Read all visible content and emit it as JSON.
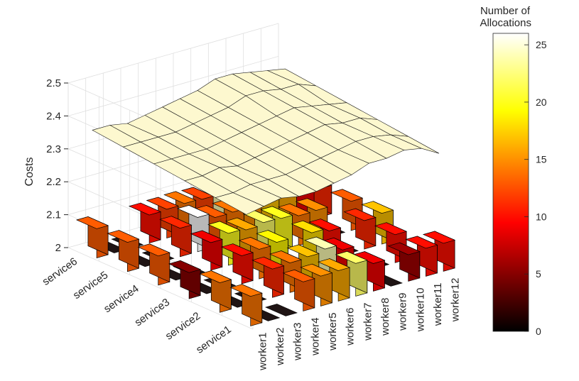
{
  "chart_data": {
    "type": "bar3d+surface",
    "zlabel": "Costs",
    "zlim": [
      2.0,
      2.5
    ],
    "zticks": [
      "2",
      "2.1",
      "2.2",
      "2.3",
      "2.4",
      "2.5"
    ],
    "services": [
      "service1",
      "service2",
      "service3",
      "service4",
      "service5",
      "service6"
    ],
    "workers": [
      "worker1",
      "worker2",
      "worker3",
      "worker4",
      "worker5",
      "worker6",
      "worker7",
      "worker8",
      "worker9",
      "worker10",
      "worker11",
      "worker12"
    ],
    "colorbar": {
      "title_line1": "Number of",
      "title_line2": "Allocations",
      "range": [
        0,
        26
      ],
      "ticks": [
        "0",
        "5",
        "10",
        "15",
        "20",
        "25"
      ]
    },
    "allocations": [
      [
        14,
        0,
        0,
        13,
        15,
        16,
        22,
        9,
        0,
        6,
        10,
        10
      ],
      [
        14,
        0,
        0,
        11,
        14,
        17,
        24,
        9,
        0,
        0,
        10,
        0
      ],
      [
        5,
        0,
        0,
        10,
        14,
        19,
        0,
        18,
        10,
        0,
        11,
        17
      ],
      [
        13,
        0,
        0,
        9,
        20,
        16,
        22,
        20,
        14,
        15,
        0,
        13
      ],
      [
        13,
        0,
        0,
        11,
        26,
        13,
        14,
        15,
        17,
        16,
        9,
        11
      ],
      [
        13,
        0,
        0,
        10,
        12,
        14,
        12,
        24,
        22,
        20,
        9,
        11
      ]
    ],
    "cost_surface": [
      [
        2.32,
        2.33,
        2.34,
        2.33,
        2.33,
        2.34,
        2.35,
        2.37,
        2.37,
        2.38,
        2.37,
        2.34
      ],
      [
        2.33,
        2.33,
        2.34,
        2.34,
        2.34,
        2.35,
        2.36,
        2.37,
        2.38,
        2.38,
        2.37,
        2.35
      ],
      [
        2.34,
        2.34,
        2.35,
        2.34,
        2.35,
        2.36,
        2.37,
        2.38,
        2.39,
        2.38,
        2.38,
        2.36
      ],
      [
        2.35,
        2.35,
        2.35,
        2.35,
        2.36,
        2.37,
        2.38,
        2.39,
        2.4,
        2.39,
        2.38,
        2.37
      ],
      [
        2.36,
        2.36,
        2.36,
        2.36,
        2.37,
        2.38,
        2.39,
        2.41,
        2.41,
        2.4,
        2.4,
        2.38
      ],
      [
        2.37,
        2.37,
        2.36,
        2.37,
        2.38,
        2.39,
        2.4,
        2.42,
        2.42,
        2.41,
        2.4,
        2.39
      ]
    ]
  }
}
